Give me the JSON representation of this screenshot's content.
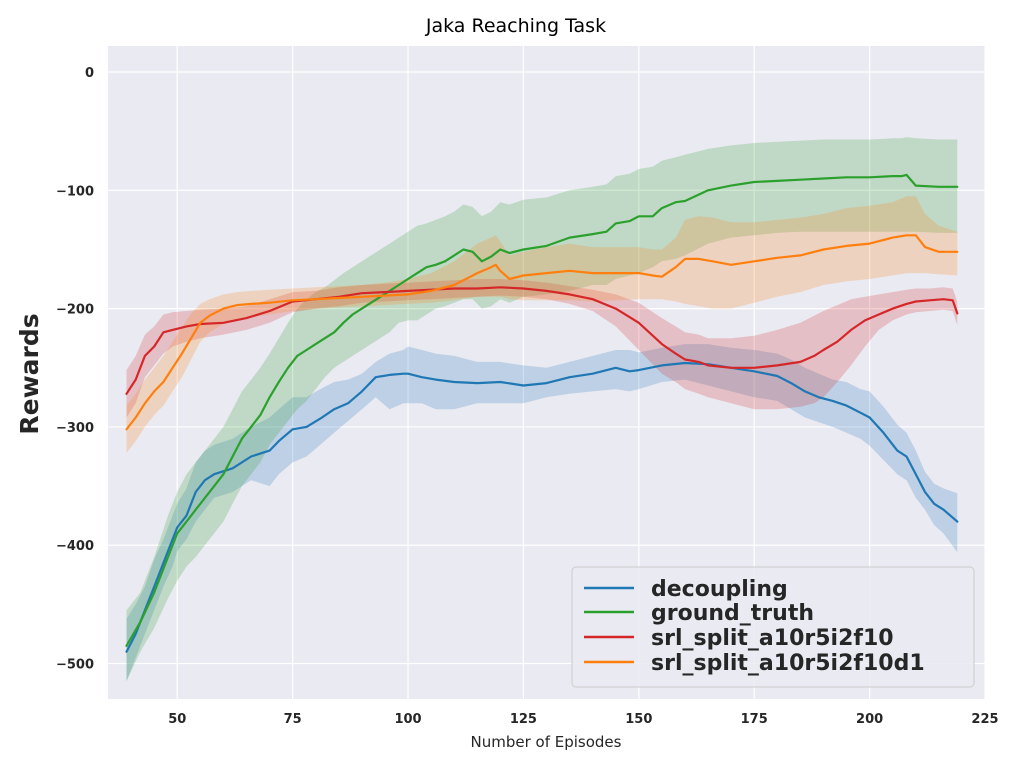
{
  "chart_data": {
    "type": "line",
    "title": "Jaka Reaching Task",
    "xlabel": "Number of Episodes",
    "ylabel": "Rewards",
    "xlim": [
      35,
      225
    ],
    "ylim": [
      -530,
      22
    ],
    "xticks": [
      50,
      75,
      100,
      125,
      150,
      175,
      200,
      225
    ],
    "xtick_labels": [
      "50",
      "75",
      "100",
      "125",
      "150",
      "175",
      "200",
      "225"
    ],
    "yticks": [
      0,
      -100,
      -200,
      -300,
      -400,
      -500
    ],
    "ytick_labels": [
      "0",
      "−100",
      "−200",
      "−300",
      "−400",
      "−500"
    ],
    "grid": true,
    "legend_position": "lower-right",
    "series": [
      {
        "name": "decoupling",
        "color": "#1f77b4",
        "x": [
          39,
          41,
          43,
          45,
          47,
          49,
          50,
          52,
          54,
          56,
          58,
          62,
          66,
          70,
          72,
          75,
          78,
          81,
          84,
          87,
          90,
          93,
          96,
          99,
          100,
          103,
          106,
          110,
          115,
          120,
          125,
          130,
          135,
          140,
          145,
          148,
          150,
          155,
          160,
          165,
          170,
          175,
          180,
          183,
          186,
          189,
          192,
          195,
          198,
          200,
          203,
          206,
          208,
          210,
          212,
          214,
          216,
          219
        ],
        "y": [
          -490,
          -475,
          -455,
          -435,
          -415,
          -395,
          -385,
          -375,
          -355,
          -345,
          -340,
          -335,
          -325,
          -320,
          -312,
          -302,
          -300,
          -293,
          -285,
          -280,
          -270,
          -258,
          -256,
          -255,
          -255,
          -258,
          -260,
          -262,
          -263,
          -262,
          -265,
          -263,
          -258,
          -255,
          -250,
          -253,
          -252,
          -248,
          -246,
          -247,
          -250,
          -253,
          -257,
          -263,
          -270,
          -275,
          -278,
          -282,
          -288,
          -292,
          -305,
          -320,
          -325,
          -340,
          -355,
          -365,
          -370,
          -380
        ],
        "lower": [
          -515,
          -495,
          -475,
          -455,
          -435,
          -418,
          -405,
          -395,
          -380,
          -370,
          -360,
          -355,
          -345,
          -350,
          -340,
          -330,
          -325,
          -315,
          -305,
          -295,
          -285,
          -275,
          -285,
          -280,
          -280,
          -280,
          -285,
          -285,
          -280,
          -280,
          -280,
          -275,
          -272,
          -270,
          -268,
          -270,
          -268,
          -262,
          -260,
          -265,
          -270,
          -275,
          -278,
          -285,
          -292,
          -296,
          -300,
          -305,
          -310,
          -316,
          -328,
          -340,
          -345,
          -360,
          -370,
          -383,
          -390,
          -406
        ],
        "upper": [
          -462,
          -450,
          -435,
          -412,
          -395,
          -375,
          -365,
          -352,
          -330,
          -320,
          -315,
          -310,
          -300,
          -292,
          -285,
          -275,
          -275,
          -268,
          -262,
          -260,
          -255,
          -245,
          -238,
          -235,
          -232,
          -235,
          -238,
          -240,
          -245,
          -245,
          -248,
          -250,
          -245,
          -240,
          -235,
          -235,
          -237,
          -233,
          -230,
          -230,
          -233,
          -235,
          -238,
          -243,
          -250,
          -255,
          -260,
          -262,
          -268,
          -270,
          -283,
          -298,
          -305,
          -320,
          -338,
          -348,
          -352,
          -356
        ]
      },
      {
        "name": "ground_truth",
        "color": "#2ca02c",
        "x": [
          39,
          42,
          45,
          48,
          50,
          52,
          54,
          56,
          58,
          60,
          62,
          64,
          66,
          68,
          70,
          72,
          74,
          76,
          78,
          80,
          82,
          84,
          86,
          88,
          90,
          92,
          94,
          96,
          98,
          100,
          102,
          104,
          106,
          108,
          110,
          112,
          114,
          116,
          118,
          120,
          122,
          125,
          130,
          135,
          140,
          143,
          145,
          148,
          150,
          153,
          155,
          158,
          160,
          165,
          170,
          175,
          180,
          185,
          190,
          195,
          200,
          205,
          207,
          208,
          210,
          215,
          219
        ],
        "y": [
          -485,
          -465,
          -440,
          -410,
          -390,
          -380,
          -370,
          -360,
          -350,
          -340,
          -325,
          -310,
          -300,
          -290,
          -275,
          -262,
          -250,
          -240,
          -235,
          -230,
          -225,
          -220,
          -212,
          -205,
          -200,
          -195,
          -190,
          -185,
          -180,
          -175,
          -170,
          -165,
          -163,
          -160,
          -155,
          -150,
          -152,
          -160,
          -156,
          -150,
          -153,
          -150,
          -147,
          -140,
          -137,
          -135,
          -128,
          -126,
          -122,
          -122,
          -115,
          -110,
          -109,
          -100,
          -96,
          -93,
          -92,
          -91,
          -90,
          -89,
          -89,
          -88,
          -88,
          -87,
          -96,
          -97,
          -97
        ],
        "lower": [
          -515,
          -490,
          -470,
          -445,
          -430,
          -418,
          -410,
          -400,
          -390,
          -380,
          -365,
          -350,
          -340,
          -330,
          -315,
          -305,
          -295,
          -285,
          -278,
          -268,
          -258,
          -250,
          -245,
          -240,
          -235,
          -230,
          -225,
          -220,
          -212,
          -210,
          -210,
          -205,
          -200,
          -198,
          -195,
          -192,
          -192,
          -200,
          -198,
          -192,
          -195,
          -190,
          -188,
          -185,
          -180,
          -180,
          -175,
          -172,
          -170,
          -165,
          -160,
          -158,
          -155,
          -145,
          -140,
          -138,
          -136,
          -135,
          -135,
          -135,
          -135,
          -135,
          -135,
          -135,
          -135,
          -136,
          -136
        ],
        "upper": [
          -455,
          -440,
          -410,
          -375,
          -355,
          -340,
          -330,
          -320,
          -310,
          -300,
          -285,
          -270,
          -260,
          -250,
          -238,
          -225,
          -212,
          -200,
          -192,
          -186,
          -182,
          -176,
          -170,
          -165,
          -160,
          -155,
          -150,
          -145,
          -140,
          -135,
          -130,
          -128,
          -125,
          -122,
          -118,
          -112,
          -114,
          -122,
          -118,
          -110,
          -112,
          -108,
          -106,
          -100,
          -97,
          -95,
          -88,
          -86,
          -82,
          -80,
          -75,
          -72,
          -70,
          -65,
          -62,
          -60,
          -59,
          -58,
          -57,
          -57,
          -57,
          -56,
          -56,
          -55,
          -56,
          -57,
          -57
        ]
      },
      {
        "name": "srl_split_a10r5i2f10",
        "color": "#d62728",
        "x": [
          39,
          41,
          43,
          45,
          47,
          49,
          52,
          55,
          60,
          65,
          70,
          75,
          80,
          85,
          90,
          95,
          100,
          105,
          110,
          115,
          120,
          125,
          130,
          135,
          140,
          145,
          150,
          155,
          158,
          160,
          163,
          165,
          170,
          175,
          180,
          185,
          188,
          190,
          193,
          196,
          199,
          202,
          205,
          208,
          210,
          213,
          216,
          218,
          219
        ],
        "y": [
          -272,
          -260,
          -240,
          -232,
          -220,
          -218,
          -215,
          -213,
          -212,
          -208,
          -202,
          -194,
          -192,
          -190,
          -187,
          -186,
          -185,
          -184,
          -183,
          -183,
          -182,
          -183,
          -185,
          -188,
          -192,
          -200,
          -212,
          -230,
          -238,
          -243,
          -245,
          -248,
          -250,
          -250,
          -248,
          -245,
          -240,
          -235,
          -228,
          -218,
          -210,
          -205,
          -200,
          -196,
          -194,
          -193,
          -192,
          -193,
          -204
        ],
        "lower": [
          -292,
          -280,
          -258,
          -248,
          -238,
          -232,
          -228,
          -225,
          -222,
          -218,
          -212,
          -203,
          -200,
          -198,
          -195,
          -194,
          -193,
          -192,
          -191,
          -190,
          -189,
          -190,
          -192,
          -196,
          -202,
          -215,
          -235,
          -255,
          -262,
          -268,
          -272,
          -275,
          -280,
          -285,
          -285,
          -283,
          -280,
          -275,
          -262,
          -248,
          -232,
          -218,
          -210,
          -205,
          -203,
          -202,
          -201,
          -202,
          -214
        ],
        "upper": [
          -252,
          -240,
          -222,
          -215,
          -205,
          -203,
          -202,
          -201,
          -200,
          -198,
          -192,
          -186,
          -185,
          -182,
          -180,
          -179,
          -178,
          -177,
          -176,
          -175,
          -175,
          -176,
          -178,
          -181,
          -184,
          -188,
          -195,
          -208,
          -215,
          -220,
          -222,
          -225,
          -225,
          -223,
          -218,
          -212,
          -206,
          -202,
          -197,
          -192,
          -190,
          -188,
          -186,
          -184,
          -183,
          -183,
          -182,
          -183,
          -194
        ]
      },
      {
        "name": "srl_split_a10r5i2f10d1",
        "color": "#ff7f0e",
        "x": [
          39,
          41,
          43,
          45,
          47,
          49,
          51,
          53,
          55,
          57,
          60,
          63,
          66,
          70,
          75,
          80,
          85,
          90,
          95,
          100,
          105,
          110,
          115,
          118,
          119,
          120,
          122,
          125,
          130,
          135,
          140,
          145,
          150,
          153,
          155,
          158,
          160,
          163,
          166,
          170,
          175,
          180,
          185,
          190,
          195,
          200,
          205,
          208,
          210,
          212,
          215,
          219
        ],
        "y": [
          -302,
          -292,
          -280,
          -270,
          -262,
          -250,
          -238,
          -225,
          -212,
          -206,
          -200,
          -197,
          -196,
          -195,
          -193,
          -192,
          -191,
          -190,
          -189,
          -188,
          -185,
          -180,
          -170,
          -165,
          -163,
          -168,
          -175,
          -172,
          -170,
          -168,
          -170,
          -170,
          -170,
          -172,
          -173,
          -165,
          -158,
          -158,
          -160,
          -163,
          -160,
          -157,
          -155,
          -150,
          -147,
          -145,
          -140,
          -138,
          -138,
          -148,
          -152,
          -152
        ],
        "lower": [
          -322,
          -312,
          -300,
          -290,
          -282,
          -270,
          -258,
          -243,
          -228,
          -220,
          -213,
          -209,
          -207,
          -205,
          -202,
          -200,
          -199,
          -198,
          -197,
          -196,
          -195,
          -193,
          -190,
          -190,
          -190,
          -190,
          -192,
          -193,
          -193,
          -193,
          -194,
          -193,
          -192,
          -192,
          -192,
          -194,
          -196,
          -198,
          -200,
          -200,
          -195,
          -190,
          -186,
          -180,
          -177,
          -175,
          -172,
          -170,
          -170,
          -170,
          -171,
          -172
        ],
        "upper": [
          -282,
          -272,
          -260,
          -250,
          -240,
          -228,
          -216,
          -204,
          -196,
          -192,
          -188,
          -186,
          -185,
          -184,
          -183,
          -182,
          -181,
          -180,
          -178,
          -175,
          -170,
          -160,
          -145,
          -140,
          -138,
          -143,
          -155,
          -152,
          -148,
          -145,
          -148,
          -148,
          -148,
          -150,
          -150,
          -140,
          -125,
          -122,
          -123,
          -127,
          -127,
          -125,
          -123,
          -120,
          -115,
          -113,
          -110,
          -105,
          -105,
          -120,
          -130,
          -135
        ]
      }
    ]
  }
}
